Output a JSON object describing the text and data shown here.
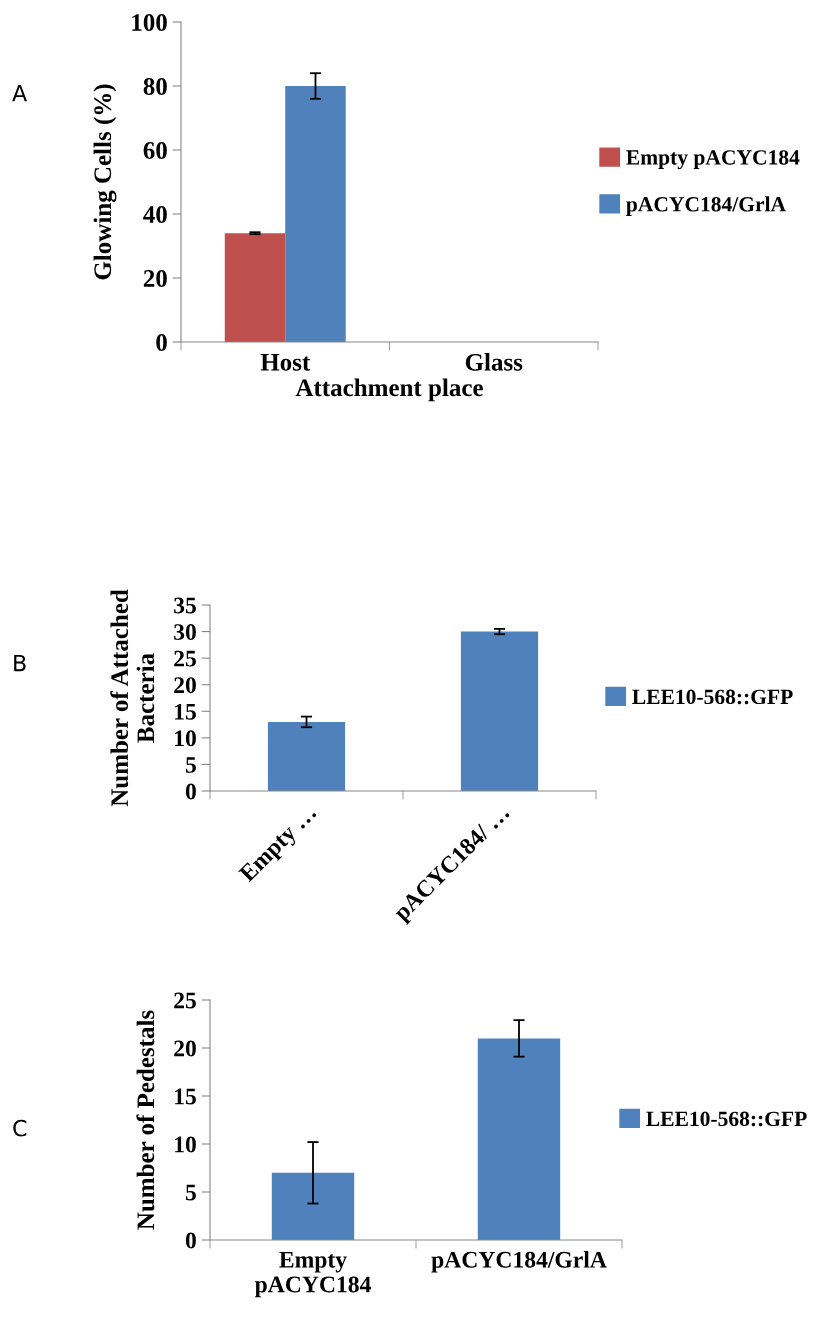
{
  "chart_data": [
    {
      "type": "bar",
      "ylabel": "Glowing Cells (%)",
      "xlabel": "Attachment place",
      "categories": [
        "Host",
        "Glass"
      ],
      "series": [
        {
          "name": "Empty pACYC184",
          "color": "#c0504d",
          "values": [
            34,
            0
          ],
          "errors": [
            0.3,
            null
          ]
        },
        {
          "name": "pACYC184/GrlA",
          "color": "#4f81bd",
          "values": [
            80,
            0
          ],
          "errors": [
            4,
            null
          ]
        }
      ],
      "ylim": [
        0,
        100
      ],
      "yticks": [
        0,
        20,
        40,
        60,
        80,
        100
      ],
      "grid": false,
      "legend": "right",
      "annotations": [
        "A"
      ]
    },
    {
      "type": "bar",
      "ylabel": "Number of Attached\nBacteria",
      "categories": [
        "Empty …",
        "pACYC184/ …"
      ],
      "series": [
        {
          "name": "LEE10-568::GFP",
          "color": "#4f81bd",
          "values": [
            13,
            30
          ],
          "errors": [
            1,
            0.5
          ]
        }
      ],
      "ylim": [
        0,
        35
      ],
      "yticks": [
        0,
        5,
        10,
        15,
        20,
        25,
        30,
        35
      ],
      "grid": false,
      "legend": "right",
      "annotations": [
        "B"
      ]
    },
    {
      "type": "bar",
      "ylabel": "Number of Pedestals",
      "categories": [
        "Empty\npACYC184",
        "pACYC184/GrlA"
      ],
      "series": [
        {
          "name": "LEE10-568::GFP",
          "color": "#4f81bd",
          "values": [
            7,
            21
          ],
          "errors": [
            3.2,
            1.9
          ]
        }
      ],
      "ylim": [
        0,
        25
      ],
      "yticks": [
        0,
        5,
        10,
        15,
        20,
        25
      ],
      "grid": false,
      "legend": "right",
      "annotations": [
        "C"
      ]
    }
  ]
}
